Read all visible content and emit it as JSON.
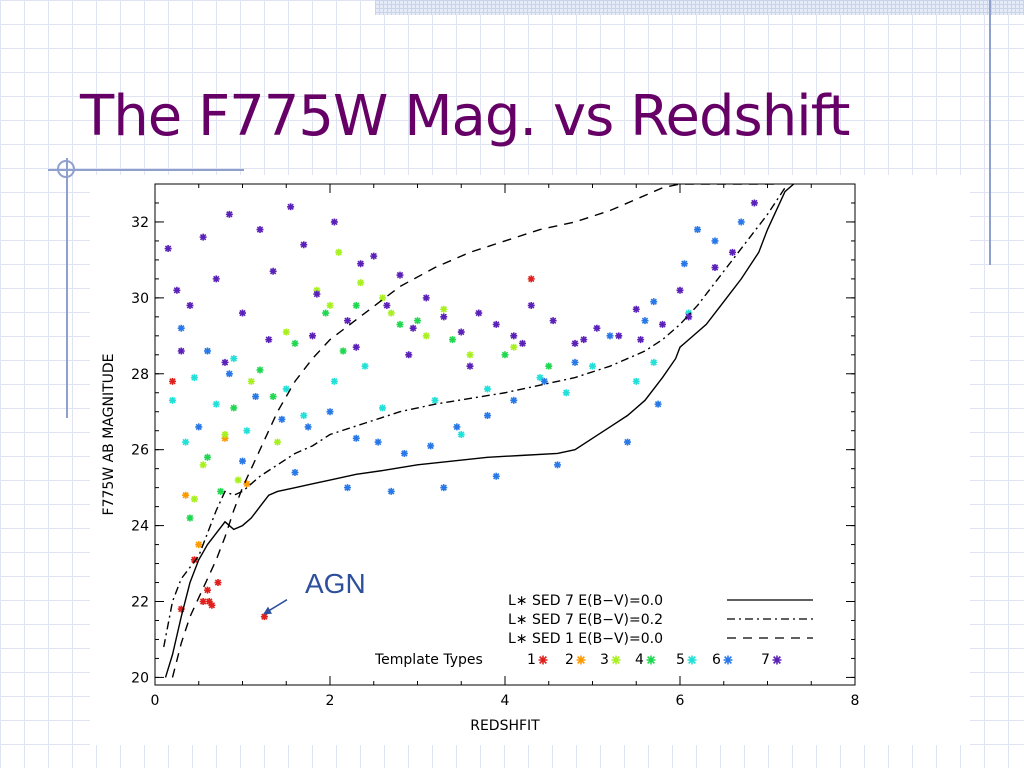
{
  "slide": {
    "title": "The F775W Mag. vs Redshift"
  },
  "colors": {
    "title": "#660066",
    "accent": "#8fa0cf",
    "annotation": "#2e4f9c"
  },
  "chart_data": {
    "type": "scatter",
    "title": "",
    "xlabel": "REDSHFIT",
    "ylabel": "F775W AB MAGNITUDE",
    "xlim": [
      0,
      8
    ],
    "ylim": [
      19.8,
      33.0
    ],
    "xticks": [
      "0",
      "2",
      "4",
      "6",
      "8"
    ],
    "yticks": [
      "20",
      "22",
      "24",
      "26",
      "28",
      "30",
      "32"
    ],
    "xtick_values": [
      0,
      2,
      4,
      6,
      8
    ],
    "ytick_values": [
      20,
      22,
      24,
      26,
      28,
      30,
      32
    ],
    "grid": false,
    "legend_position": "bottom-right",
    "marker": "asterisk",
    "annotation": {
      "text": "AGN",
      "x": 1.2,
      "y": 21.6
    },
    "lines": [
      {
        "name": "L* SED 7 E(B-V)=0.0",
        "style": "solid",
        "x": [
          0.12,
          0.2,
          0.3,
          0.4,
          0.5,
          0.6,
          0.7,
          0.8,
          0.9,
          1.0,
          1.1,
          1.2,
          1.3,
          1.4,
          1.6,
          1.8,
          2.0,
          2.3,
          2.6,
          3.0,
          3.4,
          3.8,
          4.2,
          4.6,
          4.8,
          5.0,
          5.2,
          5.4,
          5.6,
          5.8,
          5.95,
          6.0,
          6.1,
          6.3,
          6.5,
          6.7,
          6.9,
          7.0,
          7.1,
          7.2,
          7.3
        ],
        "y": [
          20.0,
          20.6,
          21.6,
          22.5,
          23.1,
          23.5,
          23.8,
          24.1,
          23.9,
          24.0,
          24.2,
          24.5,
          24.8,
          24.9,
          25.0,
          25.1,
          25.2,
          25.35,
          25.45,
          25.6,
          25.7,
          25.8,
          25.85,
          25.9,
          26.0,
          26.3,
          26.6,
          26.9,
          27.3,
          27.9,
          28.4,
          28.7,
          28.9,
          29.3,
          29.9,
          30.5,
          31.2,
          31.8,
          32.3,
          32.8,
          33.0
        ]
      },
      {
        "name": "L* SED 7 E(B-V)=0.2",
        "style": "dashdot",
        "x": [
          0.1,
          0.2,
          0.3,
          0.4,
          0.5,
          0.6,
          0.7,
          0.8,
          0.9,
          1.0,
          1.2,
          1.4,
          1.6,
          1.8,
          2.0,
          2.4,
          2.8,
          3.2,
          3.6,
          4.0,
          4.4,
          4.8,
          5.2,
          5.6,
          5.8,
          6.0,
          6.2,
          6.4,
          6.6,
          6.8,
          7.0,
          7.2
        ],
        "y": [
          20.8,
          22.0,
          22.6,
          22.9,
          23.2,
          23.8,
          24.4,
          24.9,
          24.8,
          24.9,
          25.3,
          25.6,
          25.9,
          26.1,
          26.4,
          26.7,
          27.0,
          27.2,
          27.35,
          27.5,
          27.7,
          27.9,
          28.2,
          28.6,
          28.9,
          29.3,
          29.8,
          30.4,
          31.0,
          31.6,
          32.2,
          32.9
        ]
      },
      {
        "name": "L* SED 1 E(B-V)=0.0",
        "style": "dashed",
        "x": [
          0.2,
          0.3,
          0.4,
          0.5,
          0.6,
          0.7,
          0.8,
          0.9,
          1.0,
          1.1,
          1.2,
          1.4,
          1.6,
          1.8,
          2.0,
          2.4,
          2.8,
          3.2,
          3.6,
          4.0,
          4.4,
          4.8,
          5.2,
          5.5,
          5.8,
          6.0,
          6.2,
          6.5,
          6.8,
          7.0,
          7.15
        ],
        "y": [
          20.0,
          20.9,
          21.6,
          22.1,
          22.6,
          23.1,
          23.7,
          24.4,
          25.0,
          25.5,
          26.0,
          27.0,
          27.8,
          28.4,
          28.9,
          29.6,
          30.3,
          30.8,
          31.2,
          31.5,
          31.8,
          32.0,
          32.3,
          32.6,
          32.9,
          33.0,
          33.0,
          33.0,
          33.0,
          33.0,
          33.0
        ]
      }
    ],
    "legend": [
      {
        "label": "L∗ SED 7 E(B−V)=0.0",
        "style": "solid"
      },
      {
        "label": "L∗ SED 7 E(B−V)=0.2",
        "style": "dashdot"
      },
      {
        "label": "L∗ SED 1 E(B−V)=0.0",
        "style": "dashed"
      }
    ],
    "template_types": {
      "label": "Template Types",
      "types": [
        {
          "id": "1",
          "color": "#e0201c"
        },
        {
          "id": "2",
          "color": "#ff9a00"
        },
        {
          "id": "3",
          "color": "#a8f020"
        },
        {
          "id": "4",
          "color": "#20d850"
        },
        {
          "id": "5",
          "color": "#20e0d8"
        },
        {
          "id": "6",
          "color": "#2878e8"
        },
        {
          "id": "7",
          "color": "#5a20b8"
        }
      ]
    },
    "series": [
      {
        "name": "1",
        "x": [
          0.3,
          0.55,
          0.6,
          0.62,
          0.65,
          0.72,
          1.25,
          4.3,
          0.2,
          0.45
        ],
        "y": [
          21.8,
          22.0,
          22.3,
          22.0,
          21.9,
          22.5,
          21.6,
          30.5,
          27.8,
          23.1
        ]
      },
      {
        "name": "2",
        "x": [
          0.35,
          0.5,
          0.8,
          1.05
        ],
        "y": [
          24.8,
          23.5,
          26.3,
          25.1
        ]
      },
      {
        "name": "3",
        "x": [
          0.55,
          0.8,
          1.1,
          1.5,
          1.85,
          2.1,
          2.35,
          2.7,
          3.1,
          3.6,
          0.45,
          0.95,
          1.4,
          2.0,
          2.6,
          3.3,
          4.1
        ],
        "y": [
          25.6,
          26.4,
          27.8,
          29.1,
          30.2,
          31.2,
          30.4,
          29.6,
          29.0,
          28.5,
          24.7,
          25.2,
          26.2,
          29.8,
          30.0,
          29.7,
          28.7
        ]
      },
      {
        "name": "4",
        "x": [
          0.4,
          0.6,
          0.9,
          1.2,
          1.6,
          1.95,
          2.3,
          2.8,
          3.4,
          4.0,
          4.5,
          0.75,
          1.35,
          2.15,
          3.0
        ],
        "y": [
          24.2,
          25.8,
          27.1,
          28.1,
          28.8,
          29.6,
          29.8,
          29.3,
          28.9,
          28.5,
          28.2,
          24.9,
          27.4,
          28.6,
          29.4
        ]
      },
      {
        "name": "5",
        "x": [
          0.2,
          0.45,
          0.7,
          1.05,
          1.5,
          2.05,
          2.6,
          3.2,
          3.8,
          4.4,
          5.0,
          5.5,
          6.1,
          0.35,
          0.9,
          1.7,
          2.4,
          3.5,
          4.7,
          5.7
        ],
        "y": [
          27.3,
          27.9,
          27.2,
          26.5,
          27.6,
          27.8,
          27.1,
          27.3,
          27.6,
          27.9,
          28.2,
          27.8,
          29.6,
          26.2,
          28.4,
          26.9,
          28.2,
          26.4,
          27.5,
          28.3
        ]
      },
      {
        "name": "6",
        "x": [
          0.3,
          0.6,
          0.85,
          1.15,
          1.45,
          1.75,
          2.0,
          2.3,
          2.55,
          2.85,
          3.15,
          3.45,
          3.8,
          4.1,
          4.45,
          4.8,
          5.2,
          5.6,
          5.75,
          6.05,
          6.4,
          6.7,
          0.5,
          1.0,
          1.6,
          2.2,
          2.7,
          3.3,
          3.9,
          4.6,
          5.4,
          5.7,
          6.2
        ],
        "y": [
          29.2,
          28.6,
          28.0,
          27.4,
          26.8,
          26.6,
          27.0,
          26.3,
          26.2,
          25.9,
          26.1,
          26.6,
          26.9,
          27.3,
          27.8,
          28.3,
          29.0,
          29.4,
          27.2,
          30.9,
          31.5,
          32.0,
          26.6,
          25.7,
          25.4,
          25.0,
          24.9,
          25.0,
          25.3,
          25.6,
          26.2,
          29.9,
          31.8
        ]
      },
      {
        "name": "7",
        "x": [
          0.15,
          0.25,
          0.4,
          0.55,
          0.7,
          0.85,
          1.0,
          1.2,
          1.35,
          1.55,
          1.7,
          1.85,
          2.05,
          2.2,
          2.35,
          2.5,
          2.65,
          2.8,
          2.95,
          3.1,
          3.3,
          3.5,
          3.7,
          3.9,
          4.1,
          4.3,
          4.55,
          4.8,
          5.05,
          5.3,
          5.55,
          5.8,
          6.1,
          6.4,
          6.6,
          6.85,
          0.3,
          0.8,
          1.3,
          1.8,
          2.3,
          2.9,
          3.6,
          4.2,
          4.9,
          5.5,
          6.0
        ],
        "y": [
          31.3,
          30.2,
          29.8,
          31.6,
          30.5,
          32.2,
          29.6,
          31.8,
          30.7,
          32.4,
          31.4,
          30.1,
          32.0,
          29.4,
          30.9,
          31.1,
          29.8,
          30.6,
          29.2,
          30.0,
          29.5,
          29.1,
          29.6,
          29.3,
          29.0,
          29.8,
          29.4,
          28.8,
          29.2,
          29.0,
          28.9,
          29.3,
          29.5,
          30.8,
          31.2,
          32.5,
          28.6,
          28.3,
          28.9,
          29.0,
          28.7,
          28.5,
          28.2,
          28.8,
          28.9,
          29.7,
          30.2
        ]
      }
    ]
  }
}
